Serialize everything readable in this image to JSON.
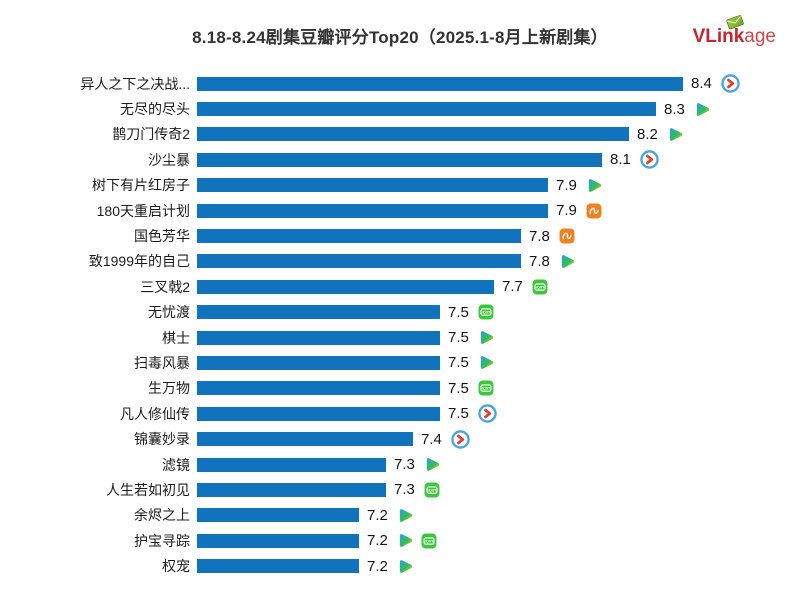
{
  "header": {
    "title": "8.18-8.24剧集豆瓣评分Top20（2025.1-8月上新剧集）",
    "logo": {
      "bold": "VLink",
      "light": "age"
    }
  },
  "colors": {
    "bar": "#1273BD",
    "logo_red": "#C4262D",
    "youku_ring": "#45A5DC",
    "youku_arrow": "#E23A2B",
    "mgtv_orange": "#F0811F",
    "iqiyi_green": "#3CC63C",
    "tencent_blue": "#2D9CF0",
    "tencent_green": "#2FBE53",
    "tencent_yellow": "#F6CE1D"
  },
  "chart_data": {
    "type": "bar",
    "orientation": "horizontal",
    "title": "8.18-8.24剧集豆瓣评分Top20（2025.1-8月上新剧集）",
    "xlabel": "",
    "ylabel": "",
    "xlim": [
      6.6,
      8.5
    ],
    "grid": false,
    "legend": "none",
    "value_labels": true,
    "bar_color": "#1273BD",
    "categories": [
      "异人之下之决战...",
      "无尽的尽头",
      "鹊刀门传奇2",
      "沙尘暴",
      "树下有片红房子",
      "180天重启计划",
      "国色芳华",
      "致1999年的自己",
      "三叉戟2",
      "无忧渡",
      "棋士",
      "扫毒风暴",
      "生万物",
      "凡人修仙传",
      "锦囊妙录",
      "滤镜",
      "人生若如初见",
      "余烬之上",
      "护宝寻踪",
      "权宠"
    ],
    "values": [
      8.4,
      8.3,
      8.2,
      8.1,
      7.9,
      7.9,
      7.8,
      7.8,
      7.7,
      7.5,
      7.5,
      7.5,
      7.5,
      7.5,
      7.4,
      7.3,
      7.3,
      7.2,
      7.2,
      7.2
    ],
    "platforms": [
      [
        "youku"
      ],
      [
        "tencent"
      ],
      [
        "tencent"
      ],
      [
        "youku"
      ],
      [
        "tencent"
      ],
      [
        "mgtv"
      ],
      [
        "mgtv"
      ],
      [
        "tencent"
      ],
      [
        "iqiyi"
      ],
      [
        "iqiyi"
      ],
      [
        "tencent"
      ],
      [
        "tencent"
      ],
      [
        "iqiyi"
      ],
      [
        "youku"
      ],
      [
        "youku"
      ],
      [
        "tencent"
      ],
      [
        "iqiyi"
      ],
      [
        "tencent"
      ],
      [
        "tencent",
        "iqiyi"
      ],
      [
        "tencent"
      ]
    ]
  }
}
